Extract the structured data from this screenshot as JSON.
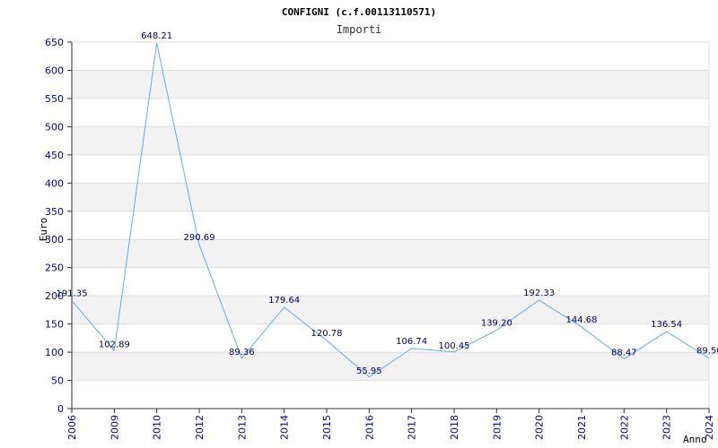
{
  "chart_data": {
    "type": "line",
    "title": "CONFIGNI (c.f.00113110571)",
    "subtitle": "Importi",
    "xlabel": "Anno",
    "ylabel": "Euro",
    "ylim": [
      0,
      650
    ],
    "ytick_step": 50,
    "grid": true,
    "categories": [
      "2006",
      "2009",
      "2010",
      "2012",
      "2013",
      "2014",
      "2015",
      "2016",
      "2017",
      "2018",
      "2019",
      "2020",
      "2021",
      "2022",
      "2023",
      "2024"
    ],
    "series": [
      {
        "name": "Importi",
        "values": [
          191.35,
          102.89,
          648.21,
          290.69,
          89.36,
          179.64,
          120.78,
          55.95,
          106.74,
          100.45,
          139.2,
          192.33,
          144.68,
          88.47,
          136.54,
          89.5
        ],
        "labels": [
          "191.35",
          "102.89",
          "648.21",
          "290.69",
          "89.36",
          "179.64",
          "120.78",
          "55.95",
          "106.74",
          "100.45",
          "139.20",
          "192.33",
          "144.68",
          "88.47",
          "136.54",
          "89.50"
        ]
      }
    ],
    "colors": {
      "line": "#66aaee",
      "band": "#f2f2f2",
      "grid": "#dddddd",
      "tick": "#0000a0",
      "label": "#000066"
    }
  }
}
